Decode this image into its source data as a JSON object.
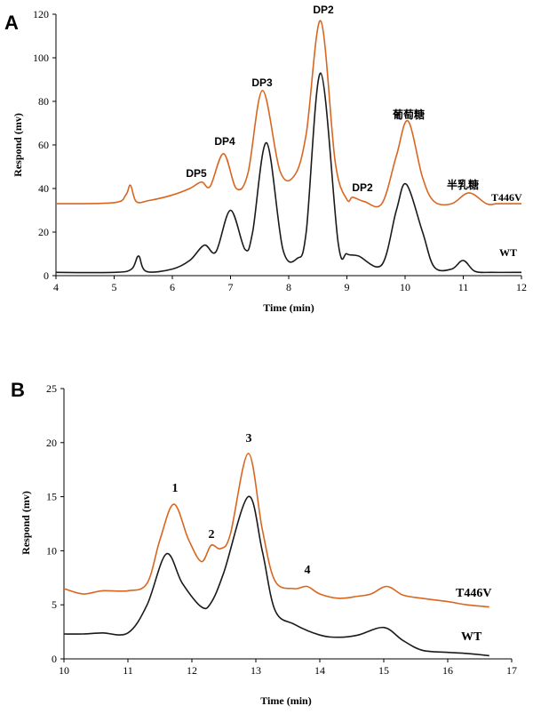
{
  "chart_data": [
    {
      "panel": "A",
      "type": "line",
      "xlabel": "Time (min)",
      "ylabel": "Respond (mv)",
      "xlim": [
        4,
        12
      ],
      "ylim": [
        0,
        120
      ],
      "xticks": [
        4,
        5,
        6,
        7,
        8,
        9,
        10,
        11,
        12
      ],
      "yticks": [
        0,
        20,
        40,
        60,
        80,
        100,
        120
      ],
      "grid": false,
      "series": [
        {
          "name": "T446V",
          "color": "#d9661f",
          "x": [
            4.0,
            5.0,
            5.2,
            5.28,
            5.38,
            5.6,
            6.0,
            6.3,
            6.5,
            6.65,
            6.88,
            7.1,
            7.3,
            7.55,
            7.85,
            8.1,
            8.3,
            8.55,
            8.8,
            9.0,
            9.1,
            9.3,
            9.6,
            9.85,
            10.05,
            10.3,
            10.5,
            10.8,
            11.1,
            11.4,
            11.6,
            12.0
          ],
          "values": [
            33,
            33.5,
            37,
            41.5,
            34,
            34.5,
            37,
            40,
            43,
            41,
            56,
            40,
            47,
            85,
            48,
            46,
            65,
            117,
            52,
            35,
            36,
            34,
            33,
            55,
            71,
            45,
            34,
            33,
            38,
            33,
            33,
            33
          ]
        },
        {
          "name": "WT",
          "color": "#1a1a1a",
          "x": [
            4.0,
            5.0,
            5.3,
            5.42,
            5.55,
            6.0,
            6.3,
            6.55,
            6.75,
            7.0,
            7.25,
            7.38,
            7.62,
            7.9,
            8.15,
            8.3,
            8.55,
            8.85,
            9.0,
            9.2,
            9.6,
            9.85,
            10.02,
            10.3,
            10.5,
            10.8,
            11.0,
            11.2,
            11.5,
            12.0
          ],
          "values": [
            1.5,
            1.5,
            3,
            9,
            2,
            3,
            7,
            14,
            11,
            30,
            12,
            20,
            61,
            12,
            8,
            20,
            93,
            15,
            10,
            9,
            5,
            30,
            42,
            20,
            4,
            3,
            7,
            2,
            1.5,
            1.5
          ]
        }
      ],
      "annotations": [
        "DP5",
        "DP4",
        "DP3",
        "DP2",
        "DP2",
        "葡萄糖",
        "半乳糖"
      ],
      "series_labels": [
        "T446V",
        "WT"
      ]
    },
    {
      "panel": "B",
      "type": "line",
      "xlabel": "Time (min)",
      "ylabel": "Respond (mv)",
      "xlim": [
        10,
        17
      ],
      "ylim": [
        0,
        25
      ],
      "xticks": [
        10,
        11,
        12,
        13,
        14,
        15,
        16,
        17
      ],
      "yticks": [
        0,
        5,
        10,
        15,
        20,
        25
      ],
      "grid": false,
      "series": [
        {
          "name": "T446V",
          "color": "#d9661f",
          "x": [
            10.0,
            10.3,
            10.6,
            11.0,
            11.3,
            11.5,
            11.72,
            11.95,
            12.15,
            12.3,
            12.45,
            12.6,
            12.88,
            13.1,
            13.3,
            13.6,
            13.8,
            14.0,
            14.3,
            14.6,
            14.8,
            15.05,
            15.3,
            15.6,
            16.0,
            16.3,
            16.65
          ],
          "values": [
            6.5,
            6.0,
            6.3,
            6.3,
            7.0,
            11.0,
            14.3,
            11.0,
            9.0,
            10.5,
            10.2,
            11.5,
            19.0,
            12.0,
            7.2,
            6.5,
            6.7,
            6.0,
            5.6,
            5.8,
            6.0,
            6.7,
            5.9,
            5.6,
            5.3,
            5.0,
            4.8
          ]
        },
        {
          "name": "WT",
          "color": "#1a1a1a",
          "x": [
            10.0,
            10.3,
            10.6,
            11.0,
            11.3,
            11.6,
            11.85,
            12.15,
            12.3,
            12.5,
            12.88,
            13.1,
            13.3,
            13.6,
            14.0,
            14.3,
            14.6,
            15.0,
            15.3,
            15.6,
            16.0,
            16.3,
            16.65
          ],
          "values": [
            2.3,
            2.3,
            2.4,
            2.4,
            5.0,
            9.7,
            7.0,
            4.8,
            5.2,
            8.0,
            15.0,
            10.0,
            4.5,
            3.2,
            2.2,
            2.0,
            2.2,
            2.9,
            1.7,
            0.8,
            0.6,
            0.5,
            0.3
          ]
        }
      ],
      "annotations": [
        "1",
        "2",
        "3",
        "4"
      ],
      "series_labels": [
        "T446V",
        "WT"
      ]
    }
  ],
  "panels": {
    "a": {
      "panel_label": "A",
      "xlabel": "Time (min)",
      "ylabel": "Respond (mv)",
      "ann": {
        "dp5": "DP5",
        "dp4": "DP4",
        "dp3": "DP3",
        "dp2_top": "DP2",
        "dp2_small": "DP2",
        "glucose": "葡萄糖",
        "galactose": "半乳糖"
      },
      "label_t446v": "T446V",
      "label_wt": "WT"
    },
    "b": {
      "panel_label": "B",
      "xlabel": "Time (min)",
      "ylabel": "Respond (mv)",
      "ann": {
        "p1": "1",
        "p2": "2",
        "p3": "3",
        "p4": "4"
      },
      "label_t446v": "T446V",
      "label_wt": "WT"
    }
  }
}
